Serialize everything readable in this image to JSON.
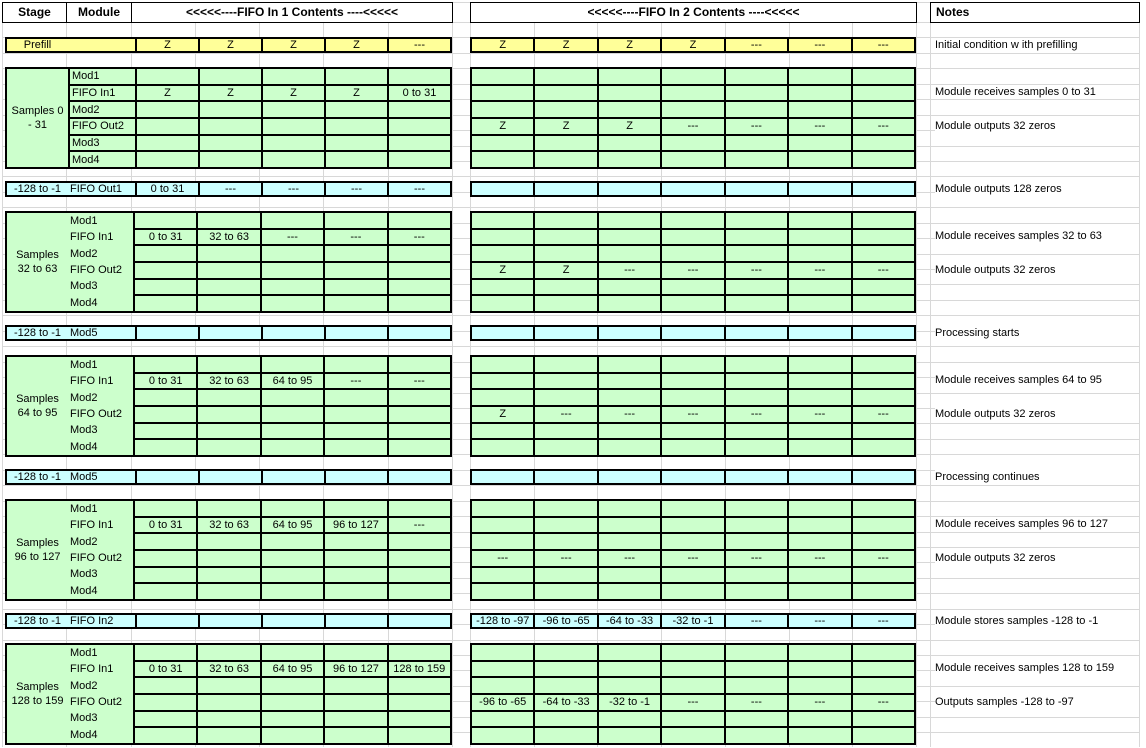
{
  "header": {
    "stage": "Stage",
    "module": "Module",
    "fifo1": "<<<<<----FIFO In 1 Contents ----<<<<<",
    "fifo2": "<<<<<----FIFO In 2 Contents ----<<<<<",
    "notes": "Notes"
  },
  "module_rows": [
    "Mod1",
    "FIFO In1",
    "Mod2",
    "FIFO Out2",
    "Mod3",
    "Mod4"
  ],
  "prefill": {
    "label": "Prefill",
    "fifo1": [
      "Z",
      "Z",
      "Z",
      "Z",
      "---"
    ],
    "fifo2": [
      "Z",
      "Z",
      "Z",
      "Z",
      "---",
      "---",
      "---"
    ],
    "note": "Initial condition w ith prefilling"
  },
  "stages": [
    {
      "stage_lines": [
        "Samples 0",
        "- 31"
      ],
      "fifo_in1": [
        "Z",
        "Z",
        "Z",
        "Z",
        "0 to 31"
      ],
      "fifo_out2": [
        "",
        "",
        "",
        "",
        "",
        "",
        ""
      ],
      "fifo_out2_row": [
        "Z",
        "Z",
        "Z",
        "---",
        "---",
        "---",
        "---"
      ],
      "note_in": "Module receives samples 0 to 31",
      "note_out": "Module outputs 32 zeros"
    },
    {
      "stage_lines": [
        "Samples",
        "32 to 63"
      ],
      "fifo_in1": [
        "0 to 31",
        "32 to 63",
        "---",
        "---",
        "---"
      ],
      "fifo_out2_row": [
        "Z",
        "Z",
        "---",
        "---",
        "---",
        "---",
        "---"
      ],
      "note_in": "Module receives samples 32 to 63",
      "note_out": "Module outputs 32 zeros"
    },
    {
      "stage_lines": [
        "Samples",
        "64 to 95"
      ],
      "fifo_in1": [
        "0 to 31",
        "32 to 63",
        "64 to 95",
        "---",
        "---"
      ],
      "fifo_out2_row": [
        "Z",
        "---",
        "---",
        "---",
        "---",
        "---",
        "---"
      ],
      "note_in": "Module receives samples 64 to 95",
      "note_out": "Module outputs 32 zeros"
    },
    {
      "stage_lines": [
        "Samples",
        "96 to 127"
      ],
      "fifo_in1": [
        "0 to 31",
        "32 to 63",
        "64 to 95",
        "96 to 127",
        "---"
      ],
      "fifo_out2_row": [
        "---",
        "---",
        "---",
        "---",
        "---",
        "---",
        "---"
      ],
      "note_in": "Module receives samples 96 to 127",
      "note_out": "Module outputs 32 zeros"
    },
    {
      "stage_lines": [
        "Samples",
        "128 to 159"
      ],
      "fifo_in1": [
        "0 to 31",
        "32 to 63",
        "64 to 95",
        "96 to 127",
        "128 to 159"
      ],
      "fifo_out2_row": [
        "-96 to -65",
        "-64 to -33",
        "-32 to -1",
        "---",
        "---",
        "---",
        "---"
      ],
      "note_in": "Module receives samples 128 to 159",
      "note_out": "Outputs samples -128 to -97"
    }
  ],
  "interstage": [
    {
      "stage": "-128 to -1",
      "module": "FIFO Out1",
      "fifo1": [
        "0 to 31",
        "---",
        "---",
        "---",
        "---"
      ],
      "fifo2": [
        "",
        "",
        "",
        "",
        "",
        "",
        ""
      ],
      "note": "Module outputs 128 zeros"
    },
    {
      "stage": "-128 to -1",
      "module": "Mod5",
      "fifo1": [
        "",
        "",
        "",
        "",
        ""
      ],
      "fifo2": [
        "",
        "",
        "",
        "",
        "",
        "",
        ""
      ],
      "note": "Processing starts"
    },
    {
      "stage": "-128 to -1",
      "module": "Mod5",
      "fifo1": [
        "",
        "",
        "",
        "",
        ""
      ],
      "fifo2": [
        "",
        "",
        "",
        "",
        "",
        "",
        ""
      ],
      "note": "Processing continues"
    },
    {
      "stage": "-128 to -1",
      "module": "FIFO In2",
      "fifo1": [
        "",
        "",
        "",
        "",
        ""
      ],
      "fifo2": [
        "-128 to -97",
        "-96 to -65",
        "-64 to -33",
        "-32 to -1",
        "---",
        "---",
        "---"
      ],
      "note": "Module stores samples -128 to -1"
    }
  ],
  "colors": {
    "yellow": "#FFFF99",
    "green": "#CCFFCC",
    "cyan": "#CCFFFF",
    "grid": "#D8D8D8",
    "border": "#000000"
  }
}
